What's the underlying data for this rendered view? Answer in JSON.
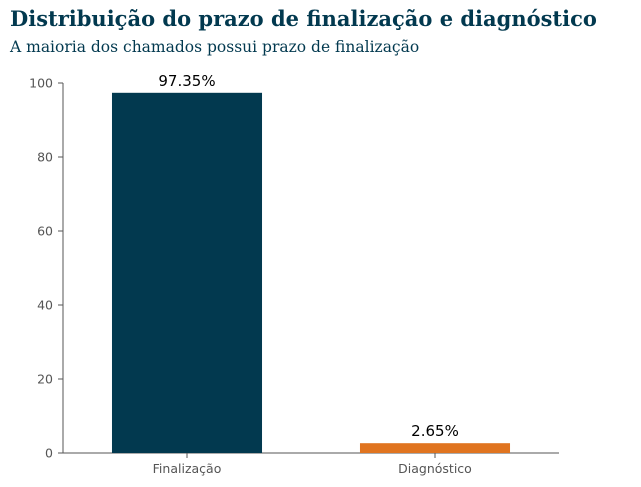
{
  "header": {
    "title": "Distribuição do prazo de finalização e diagnóstico",
    "subtitle": "A maioria dos chamados possui prazo de finalização"
  },
  "chart_data": {
    "type": "bar",
    "categories": [
      "Finalização",
      "Diagnóstico"
    ],
    "values": [
      97.35,
      2.65
    ],
    "data_labels": [
      "97.35%",
      "2.65%"
    ],
    "colors": [
      "#02394f",
      "#e0741f"
    ],
    "title": "Distribuição do prazo de finalização e diagnóstico",
    "subtitle": "A maioria dos chamados possui prazo de finalização",
    "xlabel": "",
    "ylabel": "",
    "ylim": [
      0,
      100
    ],
    "yticks": [
      0,
      20,
      40,
      60,
      80,
      100
    ],
    "grid": false,
    "legend": "none"
  }
}
